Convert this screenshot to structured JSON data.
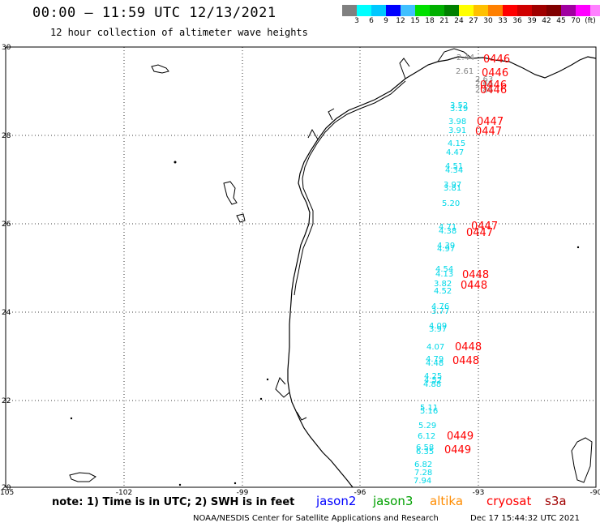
{
  "title": "00:00 – 11:59 UTC 12/13/2021",
  "subtitle": "12 hour collection of altimeter wave heights",
  "legend": {
    "colors": [
      "#808080",
      "#00ffff",
      "#00c8ff",
      "#0000ff",
      "#40c0ff",
      "#00e000",
      "#00b000",
      "#008000",
      "#ffff00",
      "#ffc000",
      "#ff8000",
      "#ff0000",
      "#d00000",
      "#a00000",
      "#800000",
      "#a000a0",
      "#ff00ff",
      "#ff80ff",
      "#000000"
    ],
    "labels": [
      "3",
      "6",
      "9",
      "12",
      "15",
      "18",
      "21",
      "24",
      "27",
      "30",
      "33",
      "36",
      "39",
      "42",
      "45",
      "70",
      "(ft)"
    ]
  },
  "axes": {
    "lon_ticks": [
      "-105",
      "-102",
      "-99",
      "-96",
      "-93",
      "-90"
    ],
    "lat_ticks": [
      "30",
      "28",
      "26",
      "24",
      "22",
      "20"
    ]
  },
  "observations": {
    "gray": [
      "2.44",
      "2.61",
      "2.63",
      "2.66",
      "2.86"
    ],
    "cyan": [
      "3.52",
      "3.19",
      "3.98",
      "3.91",
      "4.15",
      "4.47",
      "4.51",
      "4.34",
      "3.97",
      "3.81",
      "5.20",
      "4.71",
      "4.38",
      "4.39",
      "4.97",
      "4.54",
      "4.13",
      "3.82",
      "4.52",
      "4.76",
      "3.77",
      "4.09",
      "3.97",
      "4.07",
      "4.79",
      "4.48",
      "4.25",
      "4.52",
      "4.88",
      "5.11",
      "5.16",
      "5.29",
      "6.12",
      "6.58",
      "6.35",
      "6.82",
      "7.28",
      "7.94"
    ],
    "red": [
      "0446",
      "0446",
      "0446",
      "0446",
      "0447",
      "0447",
      "0447",
      "0447",
      "0448",
      "0448",
      "0448",
      "0448",
      "0449",
      "0449"
    ]
  },
  "note": "note: 1) Time is in UTC; 2) SWH is in feet",
  "missions": [
    {
      "name": "jason2",
      "color": "#0000ff"
    },
    {
      "name": "jason3",
      "color": "#00a000"
    },
    {
      "name": "altika",
      "color": "#ff8c00"
    },
    {
      "name": "cryosat",
      "color": "#ff0000"
    },
    {
      "name": "s3a",
      "color": "#a00000"
    }
  ],
  "credit": "NOAA/NESDIS Center for Satellite Applications and Research",
  "timestamp": "Dec 17 15:44:32 UTC 2021"
}
